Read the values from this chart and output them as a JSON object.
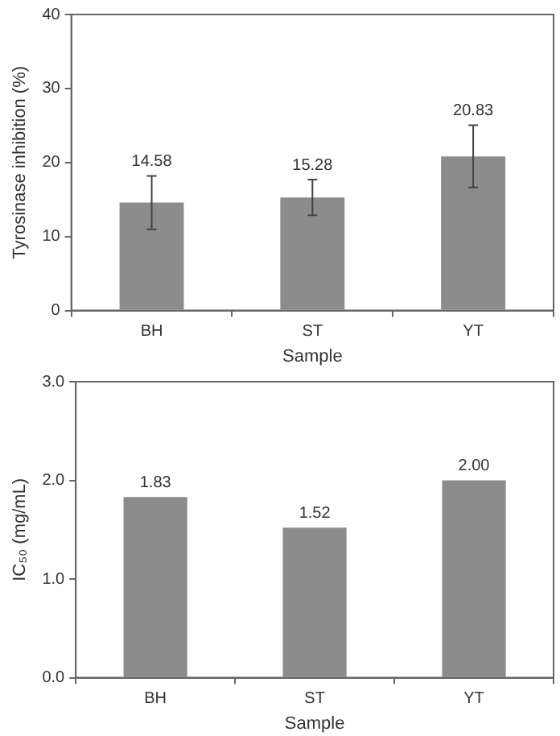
{
  "chart_data": [
    {
      "type": "bar",
      "categories": [
        "BH",
        "ST",
        "YT"
      ],
      "values": [
        14.58,
        15.28,
        20.83
      ],
      "errors": [
        3.6,
        2.4,
        4.2
      ],
      "value_labels": [
        "14.58",
        "15.28",
        "20.83"
      ],
      "color": "#8c8c8c",
      "xlabel": "Sample",
      "ylabel": "Tyrosinase inhibition (%)",
      "ylim": [
        0,
        40
      ],
      "yticks": [
        0,
        10,
        20,
        30,
        40
      ],
      "grid": false,
      "legend": false
    },
    {
      "type": "bar",
      "categories": [
        "BH",
        "ST",
        "YT"
      ],
      "values": [
        1.83,
        1.52,
        2.0
      ],
      "value_labels": [
        "1.83",
        "1.52",
        "2.00"
      ],
      "color": "#8c8c8c",
      "xlabel": "Sample",
      "ylabel": "IC₅₀ (mg/mL)",
      "ylim": [
        0,
        3
      ],
      "yticks": [
        {
          "value": 0,
          "label": "0.0"
        },
        {
          "value": 1,
          "label": "1.0"
        },
        {
          "value": 2,
          "label": "2.0"
        },
        {
          "value": 3,
          "label": "3.0"
        }
      ],
      "grid": false,
      "legend": false
    }
  ]
}
